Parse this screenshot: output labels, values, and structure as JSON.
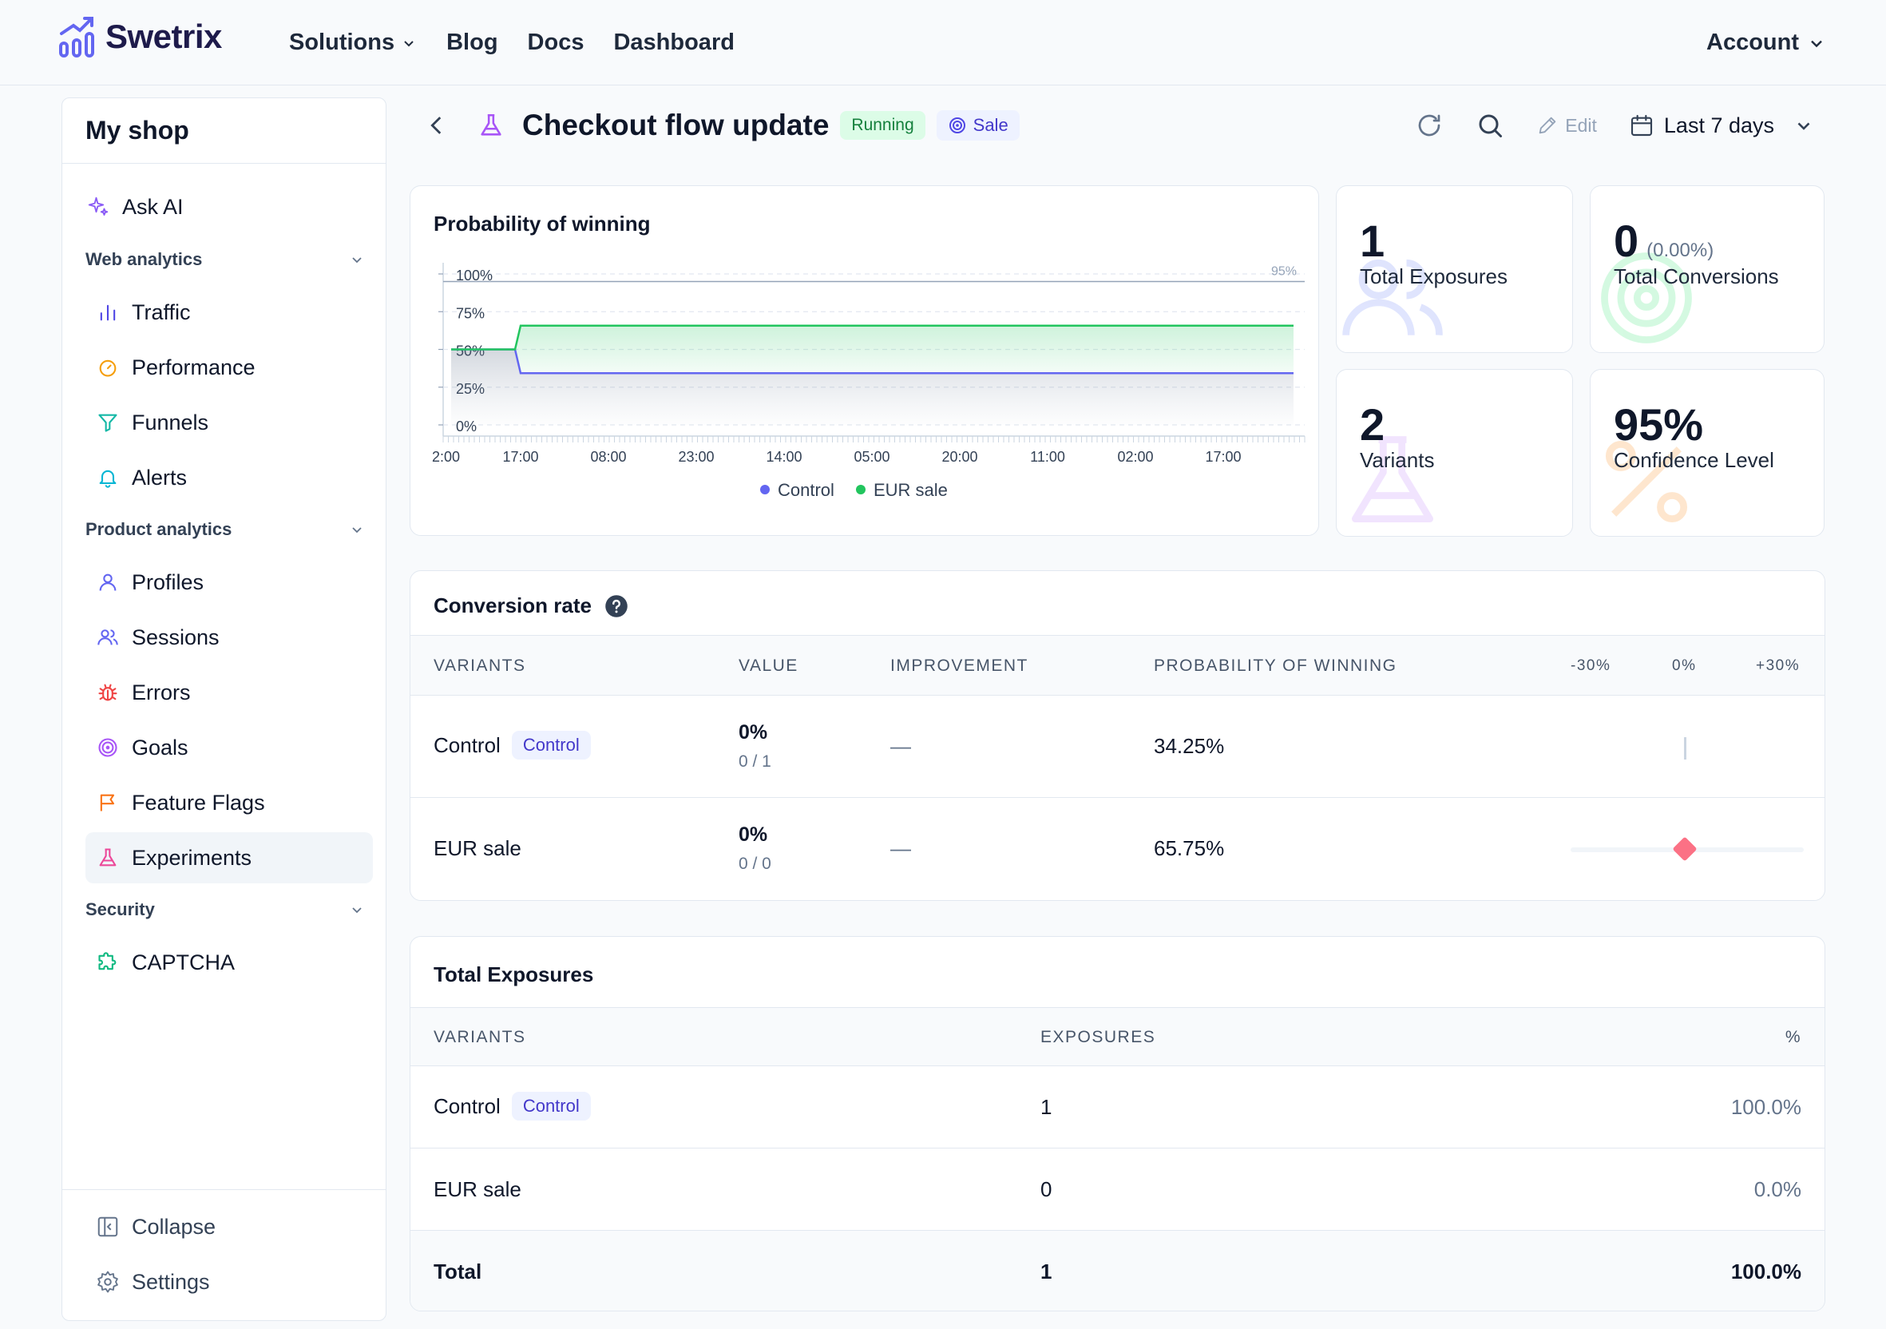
{
  "app": {
    "brand": "Swetrix",
    "nav": [
      "Solutions",
      "Blog",
      "Docs",
      "Dashboard"
    ],
    "account": "Account"
  },
  "sidebar": {
    "project": "My shop",
    "ask_ai": "Ask AI",
    "groups": {
      "web": "Web analytics",
      "product": "Product analytics",
      "security": "Security"
    },
    "items": {
      "traffic": "Traffic",
      "performance": "Performance",
      "funnels": "Funnels",
      "alerts": "Alerts",
      "profiles": "Profiles",
      "sessions": "Sessions",
      "errors": "Errors",
      "goals": "Goals",
      "feature_flags": "Feature Flags",
      "experiments": "Experiments",
      "captcha": "CAPTCHA"
    },
    "footer": {
      "collapse": "Collapse",
      "settings": "Settings"
    }
  },
  "header": {
    "title": "Checkout flow update",
    "status": "Running",
    "goal": "Sale",
    "edit": "Edit",
    "period": "Last 7 days"
  },
  "stats": {
    "exposures": {
      "value": "1",
      "label": "Total Exposures"
    },
    "conversions": {
      "value": "0",
      "sub": "(0.00%)",
      "label": "Total Conversions"
    },
    "variants": {
      "value": "2",
      "label": "Variants"
    },
    "confidence": {
      "value": "95%",
      "label": "Confidence Level"
    }
  },
  "chart_title": "Probability of winning",
  "chart_data": {
    "type": "area",
    "title": "Probability of winning",
    "x_tick_labels": [
      "2:00",
      "17:00",
      "08:00",
      "23:00",
      "14:00",
      "05:00",
      "20:00",
      "11:00",
      "02:00",
      "17:00"
    ],
    "y_tick_labels": [
      "100%",
      "75%",
      "50%",
      "25%",
      "0%"
    ],
    "ylim": [
      0,
      100
    ],
    "threshold": {
      "value": 95,
      "label": "95%"
    },
    "series": [
      {
        "name": "Control",
        "color": "#6366f1",
        "values": [
          50,
          50,
          50,
          34.25,
          34.25,
          34.25,
          34.25,
          34.25,
          34.25,
          34.25,
          34.25,
          34.25,
          34.25
        ]
      },
      {
        "name": "EUR sale",
        "color": "#22c55e",
        "values": [
          50,
          50,
          50,
          65.75,
          65.75,
          65.75,
          65.75,
          65.75,
          65.75,
          65.75,
          65.75,
          65.75,
          65.75
        ]
      }
    ],
    "legend": "bottom"
  },
  "conversion": {
    "title": "Conversion rate",
    "columns": [
      "VARIANTS",
      "VALUE",
      "IMPROVEMENT",
      "PROBABILITY OF WINNING"
    ],
    "scale": [
      "-30%",
      "0%",
      "+30%"
    ],
    "rows": [
      {
        "name": "Control",
        "tag": "Control",
        "value": "0%",
        "sub": "0 / 1",
        "improvement": "—",
        "probability": "34.25%"
      },
      {
        "name": "EUR sale",
        "tag": "",
        "value": "0%",
        "sub": "0 / 0",
        "improvement": "—",
        "probability": "65.75%"
      }
    ]
  },
  "exposures": {
    "title": "Total Exposures",
    "columns": [
      "VARIANTS",
      "EXPOSURES",
      "%"
    ],
    "rows": [
      {
        "name": "Control",
        "tag": "Control",
        "count": "1",
        "pct": "100.0%"
      },
      {
        "name": "EUR sale",
        "tag": "",
        "count": "0",
        "pct": "0.0%"
      }
    ],
    "total": {
      "label": "Total",
      "count": "1",
      "pct": "100.0%"
    }
  }
}
